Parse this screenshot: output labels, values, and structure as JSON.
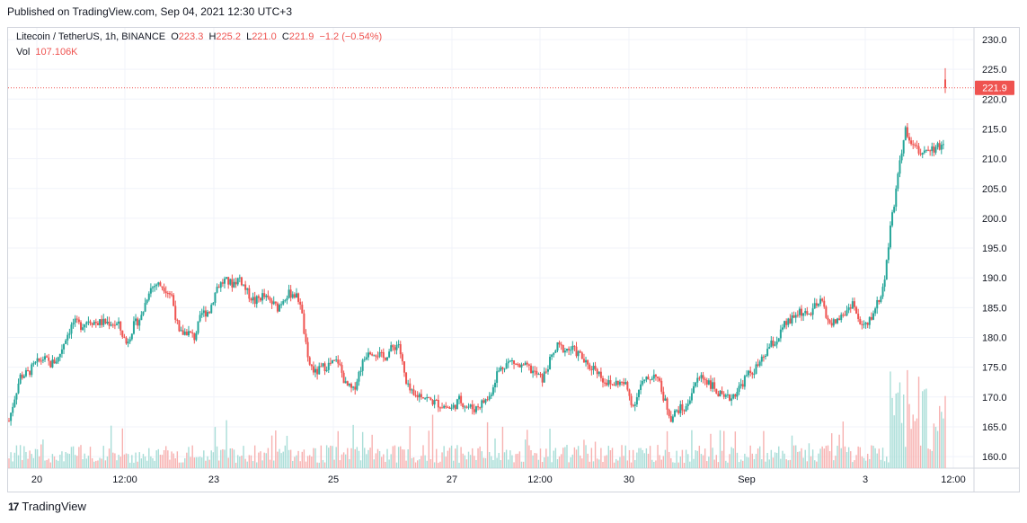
{
  "published": "Published on TradingView.com, Sep 04, 2021 12:30 UTC+3",
  "legend": {
    "symbol": "Litecoin / TetherUS, 1h, BINANCE",
    "o_label": "O",
    "o_value": "223.3",
    "h_label": "H",
    "h_value": "225.2",
    "l_label": "L",
    "l_value": "221.0",
    "c_label": "C",
    "c_value": "221.9",
    "change": "−1.2 (−0.54%)",
    "vol_label": "Vol",
    "vol_value": "107.106K"
  },
  "footer": {
    "brand": "TradingView",
    "logo_glyph": "17"
  },
  "colors": {
    "up": "#26a69a",
    "down": "#ef5350",
    "up_vol": "#a8ddd7",
    "down_vol": "#f7b1b0",
    "grid": "#f0f3fa"
  },
  "chart_data": {
    "type": "candlestick",
    "symbol": "Litecoin / TetherUS",
    "interval": "1h",
    "exchange": "BINANCE",
    "y_ticks": [
      "230.0",
      "225.0",
      "220.0",
      "215.0",
      "210.0",
      "205.0",
      "200.0",
      "195.0",
      "190.0",
      "185.0",
      "180.0",
      "175.0",
      "170.0",
      "165.0",
      "160.0"
    ],
    "ylim": [
      158.0,
      232.0
    ],
    "x_ticks": [
      "20",
      "12:00",
      "23",
      "25",
      "27",
      "12:00",
      "30",
      "Sep",
      "3",
      "12:00"
    ],
    "last_price": "221.9",
    "close_path": [
      [
        0,
        166
      ],
      [
        3,
        170
      ],
      [
        6,
        173.5
      ],
      [
        10,
        174
      ],
      [
        14,
        175.5
      ],
      [
        18,
        176.5
      ],
      [
        22,
        175.5
      ],
      [
        26,
        176.5
      ],
      [
        30,
        180
      ],
      [
        34,
        182.5
      ],
      [
        38,
        182
      ],
      [
        42,
        183
      ],
      [
        46,
        182.5
      ],
      [
        50,
        182.5
      ],
      [
        54,
        182.5
      ],
      [
        58,
        182
      ],
      [
        62,
        179
      ],
      [
        66,
        182
      ],
      [
        70,
        183.5
      ],
      [
        74,
        188
      ],
      [
        78,
        189
      ],
      [
        82,
        188.5
      ],
      [
        86,
        187
      ],
      [
        90,
        180.5
      ],
      [
        94,
        181
      ],
      [
        98,
        180
      ],
      [
        102,
        184
      ],
      [
        106,
        184.5
      ],
      [
        110,
        188.5
      ],
      [
        114,
        189.5
      ],
      [
        118,
        189
      ],
      [
        122,
        190
      ],
      [
        126,
        187.5
      ],
      [
        130,
        186
      ],
      [
        134,
        187
      ],
      [
        138,
        186
      ],
      [
        142,
        185
      ],
      [
        146,
        187
      ],
      [
        150,
        187.5
      ],
      [
        154,
        186
      ],
      [
        158,
        176
      ],
      [
        162,
        174
      ],
      [
        166,
        175
      ],
      [
        170,
        175.5
      ],
      [
        174,
        176
      ],
      [
        178,
        172
      ],
      [
        182,
        171
      ],
      [
        186,
        175
      ],
      [
        190,
        178
      ],
      [
        194,
        177.5
      ],
      [
        198,
        176.5
      ],
      [
        202,
        178
      ],
      [
        206,
        179
      ],
      [
        210,
        172
      ],
      [
        214,
        170
      ],
      [
        218,
        170.5
      ],
      [
        222,
        169.5
      ],
      [
        226,
        169
      ],
      [
        230,
        168.5
      ],
      [
        234,
        168
      ],
      [
        238,
        169.5
      ],
      [
        242,
        168.5
      ],
      [
        246,
        168
      ],
      [
        250,
        169
      ],
      [
        254,
        170
      ],
      [
        258,
        174
      ],
      [
        262,
        175.5
      ],
      [
        266,
        176
      ],
      [
        270,
        175
      ],
      [
        274,
        175
      ],
      [
        278,
        174
      ],
      [
        282,
        173
      ],
      [
        286,
        176
      ],
      [
        290,
        178.5
      ],
      [
        294,
        178
      ],
      [
        298,
        178
      ],
      [
        302,
        177
      ],
      [
        306,
        175
      ],
      [
        310,
        175
      ],
      [
        314,
        173
      ],
      [
        318,
        172
      ],
      [
        322,
        172.5
      ],
      [
        326,
        172
      ],
      [
        330,
        168.5
      ],
      [
        334,
        172
      ],
      [
        338,
        173
      ],
      [
        342,
        174
      ],
      [
        346,
        170
      ],
      [
        350,
        166.5
      ],
      [
        354,
        168
      ],
      [
        358,
        168
      ],
      [
        362,
        172
      ],
      [
        366,
        173.5
      ],
      [
        370,
        172.5
      ],
      [
        374,
        171
      ],
      [
        378,
        169.5
      ],
      [
        382,
        170
      ],
      [
        386,
        171.5
      ],
      [
        390,
        173.5
      ],
      [
        394,
        174.5
      ],
      [
        398,
        176
      ],
      [
        402,
        178.5
      ],
      [
        406,
        179.5
      ],
      [
        410,
        182
      ],
      [
        414,
        183
      ],
      [
        418,
        184.5
      ],
      [
        422,
        183.5
      ],
      [
        426,
        185
      ],
      [
        430,
        186
      ],
      [
        434,
        182
      ],
      [
        438,
        183
      ],
      [
        442,
        184
      ],
      [
        446,
        186
      ],
      [
        450,
        182
      ],
      [
        454,
        182
      ],
      [
        458,
        185
      ],
      [
        462,
        188
      ],
      [
        466,
        198
      ],
      [
        470,
        207
      ],
      [
        474,
        215
      ],
      [
        478,
        212
      ],
      [
        482,
        211
      ],
      [
        486,
        212
      ],
      [
        490,
        211.5
      ],
      [
        494,
        213
      ],
      [
        495,
        221.9
      ]
    ],
    "volume_note": "Volume bars shown as histogram; spikes near Sep 3-4"
  }
}
